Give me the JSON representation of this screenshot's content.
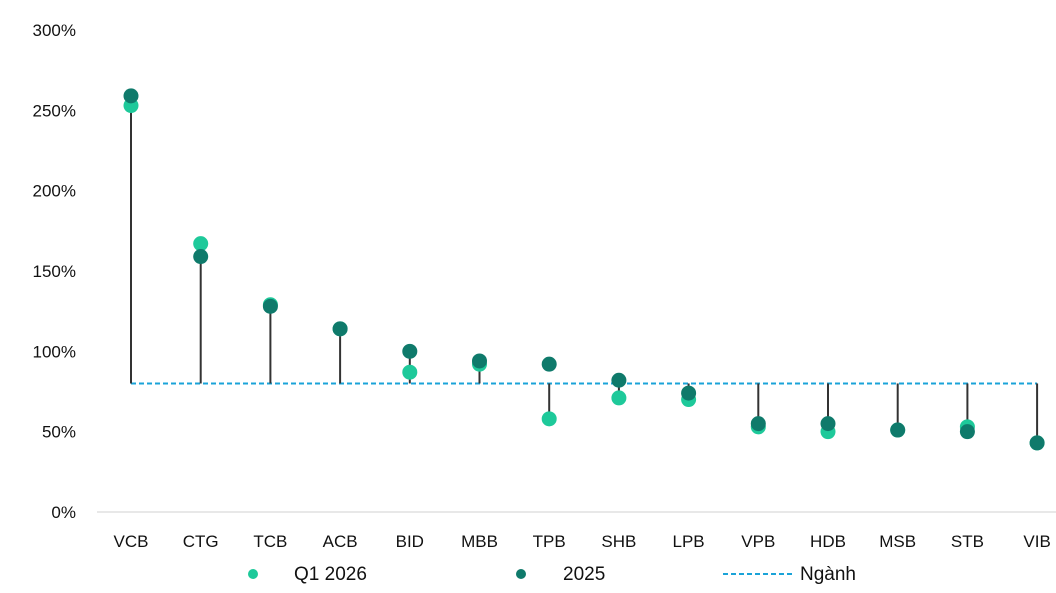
{
  "chart_data": {
    "type": "scatter",
    "categories": [
      "VCB",
      "CTG",
      "TCB",
      "ACB",
      "BID",
      "MBB",
      "TPB",
      "SHB",
      "LPB",
      "VPB",
      "HDB",
      "MSB",
      "STB",
      "VIB"
    ],
    "series": [
      {
        "name": "Q1 2026",
        "values": [
          253,
          167,
          129,
          114,
          87,
          92,
          58,
          71,
          70,
          53,
          50,
          51,
          53,
          43
        ],
        "color": "#1ec99a"
      },
      {
        "name": "2025",
        "values": [
          259,
          159,
          128,
          114,
          100,
          94,
          92,
          82,
          74,
          55,
          55,
          51,
          50,
          43
        ],
        "color": "#0f7a6b"
      }
    ],
    "reference_line": {
      "name": "Ngành",
      "value": 80,
      "color": "#1aa3d8",
      "style": "dashed"
    },
    "connector_color": "#333333",
    "y_ticks": [
      "0%",
      "50%",
      "100%",
      "150%",
      "200%",
      "250%",
      "300%"
    ],
    "ylim": [
      0,
      300
    ],
    "grid": false,
    "legend_position": "bottom"
  }
}
